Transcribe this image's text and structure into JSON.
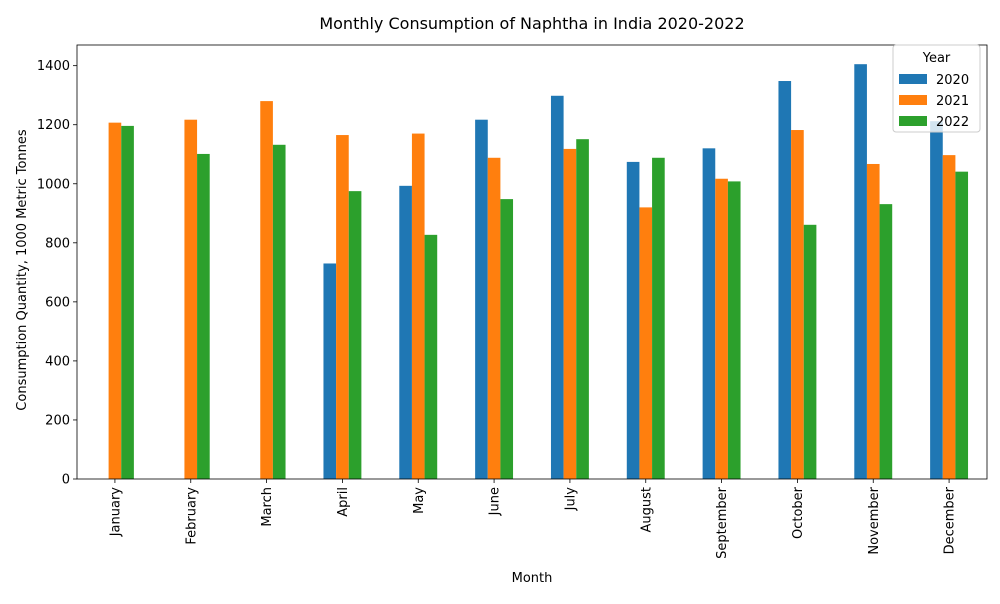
{
  "chart_data": {
    "type": "bar",
    "title": "Monthly Consumption of Naphtha in India 2020-2022",
    "xlabel": "Month",
    "ylabel": "Consumption Quantity, 1000 Metric Tonnes",
    "ylim": [
      0,
      1470
    ],
    "yticks": [
      0,
      200,
      400,
      600,
      800,
      1000,
      1200,
      1400
    ],
    "grid": false,
    "legend": {
      "title": "Year",
      "placement": "top-right"
    },
    "categories": [
      "January",
      "February",
      "March",
      "April",
      "May",
      "June",
      "July",
      "August",
      "September",
      "October",
      "November",
      "December"
    ],
    "series": [
      {
        "name": "2020",
        "color": "#1f77b4",
        "values": [
          null,
          null,
          null,
          730,
          993,
          1217,
          1298,
          1074,
          1120,
          1348,
          1405,
          1212
        ]
      },
      {
        "name": "2021",
        "color": "#ff7f0e",
        "values": [
          1207,
          1217,
          1280,
          1165,
          1170,
          1088,
          1118,
          920,
          1017,
          1182,
          1067,
          1097
        ]
      },
      {
        "name": "2022",
        "color": "#2ca02c",
        "values": [
          1196,
          1101,
          1132,
          975,
          827,
          948,
          1151,
          1088,
          1008,
          861,
          931,
          1041
        ]
      }
    ]
  }
}
